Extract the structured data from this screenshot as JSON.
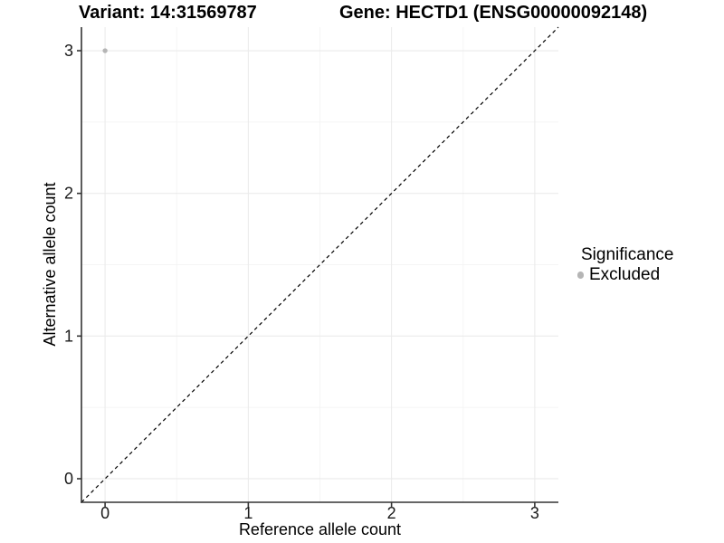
{
  "chart_data": {
    "type": "scatter",
    "title_left": "Variant: 14:31569787",
    "title_right": "Gene: HECTD1 (ENSG00000092148)",
    "xlabel": "Reference allele count",
    "ylabel": "Alternative allele count",
    "xlim": [
      -0.165,
      3.165
    ],
    "ylim": [
      -0.165,
      3.165
    ],
    "x_ticks": [
      0,
      1,
      2,
      3
    ],
    "y_ticks": [
      0,
      1,
      2,
      3
    ],
    "x_minor_ticks": [
      0.5,
      1.5,
      2.5
    ],
    "y_minor_ticks": [
      0.5,
      1.5,
      2.5
    ],
    "grid": true,
    "legend_position": "right",
    "legend_title": "Significance",
    "series": [
      {
        "name": "Excluded",
        "color": "#b5b5b5",
        "points": [
          {
            "x": 0,
            "y": 3
          }
        ]
      }
    ],
    "identity_line": {
      "style": "dashed",
      "x1": -0.165,
      "y1": -0.165,
      "x2": 3.165,
      "y2": 3.165
    }
  },
  "colors": {
    "background": "#ffffff",
    "grid_major": "#ebebeb",
    "grid_minor": "#f4f4f4",
    "axis_line": "#333333",
    "tick_mark": "#333333",
    "tick_label": "#1a1a1a",
    "identity_line": "#000000",
    "point": "#b5b5b5"
  }
}
